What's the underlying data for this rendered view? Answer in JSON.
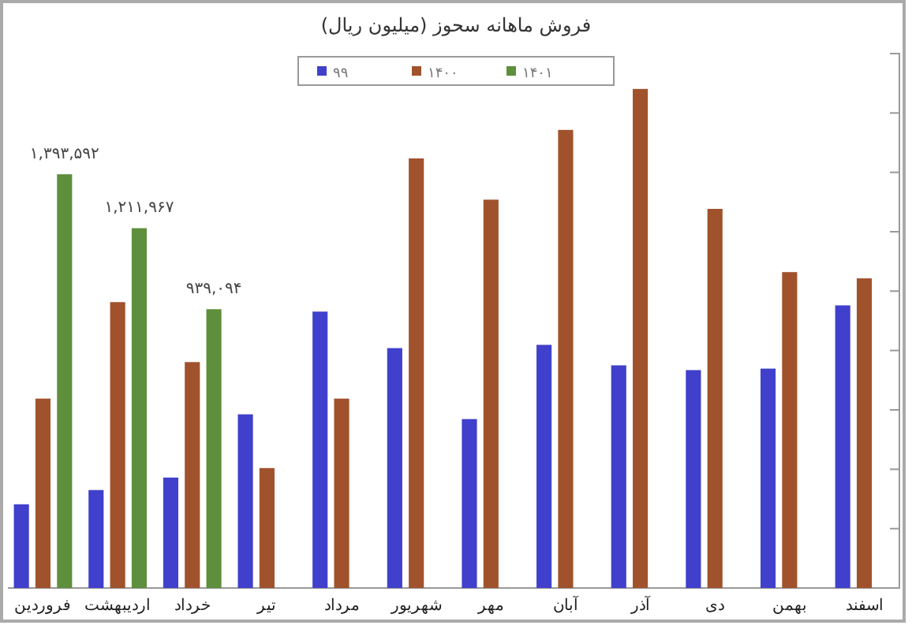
{
  "chart_data": {
    "type": "bar",
    "title": "فروش ماهانه سحوز (میلیون ریال)",
    "categories": [
      "فروردین",
      "اردیبهشت",
      "خرداد",
      "تیر",
      "مرداد",
      "شهریور",
      "مهر",
      "آبان",
      "آذر",
      "دی",
      "بهمن",
      "اسفند"
    ],
    "series": [
      {
        "name": "۹۹",
        "color": "#4040cc",
        "values": [
          282000,
          330000,
          372000,
          585000,
          931000,
          808000,
          569000,
          819000,
          750000,
          734000,
          739000,
          952000
        ]
      },
      {
        "name": "۱۴۰۰",
        "color": "#a0522d",
        "values": [
          638000,
          963000,
          761000,
          404000,
          638000,
          1447000,
          1308000,
          1543000,
          1681000,
          1277000,
          1064000,
          1043000
        ]
      },
      {
        "name": "۱۴۰۱",
        "color": "#5e8f3c",
        "values": [
          1393592,
          1211967,
          939094,
          null,
          null,
          null,
          null,
          null,
          null,
          null,
          null,
          null
        ],
        "value_labels": [
          "۱,۳۹۳,۵۹۲",
          "۱,۲۱۱,۹۶۷",
          "۹۳۹,۰۹۴",
          null,
          null,
          null,
          null,
          null,
          null,
          null,
          null,
          null
        ]
      }
    ],
    "ylim": [
      0,
      1800000
    ],
    "yticks": [
      {
        "value": 0,
        "label": null
      },
      {
        "value": 200000,
        "label": null
      },
      {
        "value": 400000,
        "label": null
      },
      {
        "value": 600000,
        "label": null
      },
      {
        "value": 800000,
        "label": null
      },
      {
        "value": 1000000,
        "label": null
      },
      {
        "value": 1200000,
        "label": null
      },
      {
        "value": 1400000,
        "label": null
      },
      {
        "value": 1600000,
        "label": null
      },
      {
        "value": 1800000,
        "label": null
      }
    ],
    "legend": "top",
    "grid": false
  }
}
